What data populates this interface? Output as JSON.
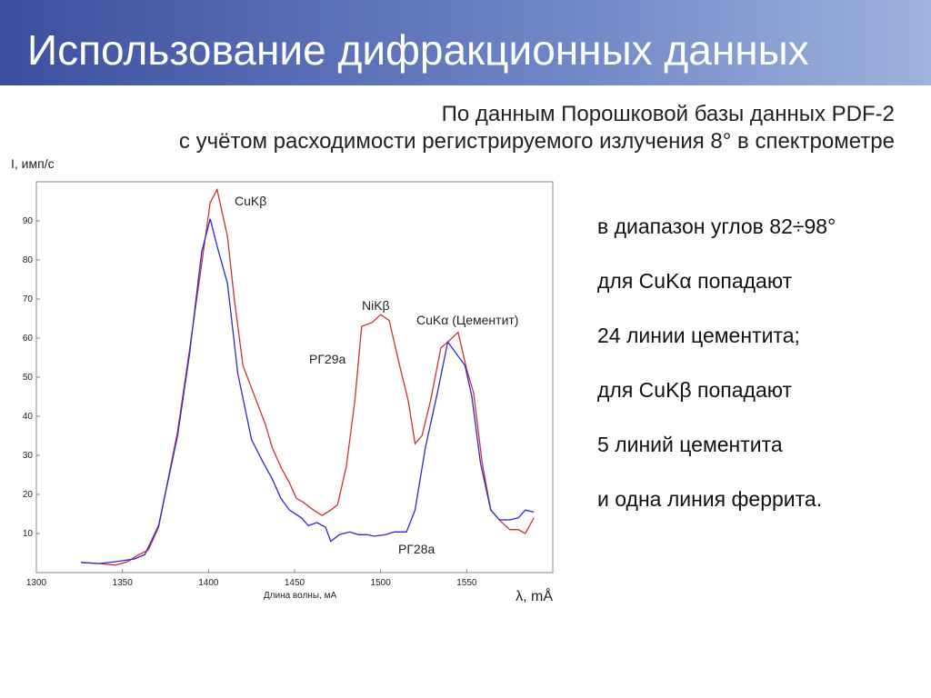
{
  "header": {
    "title": "Использование дифракционных данных"
  },
  "subtitle": [
    "По данным Порошковой базы данных PDF-2",
    "с учётом расходимости регистрируемого излучения 8° в спектрометре"
  ],
  "chart_data": {
    "type": "line",
    "y_label": "I, имп/с",
    "x_label": "Длина волны, мА",
    "x_unit": "λ, mÅ",
    "annotations": [
      "CuKβ",
      "NiKβ",
      "CuKα (Цементит)",
      "РГ29а",
      "РГ28а"
    ],
    "xlim": [
      1300,
      1600
    ],
    "xticks": [
      1300,
      1350,
      1400,
      1450,
      1500,
      1550
    ],
    "ylim": [
      0,
      100
    ],
    "yticks": [
      10,
      20,
      30,
      40,
      50,
      60,
      70,
      80,
      90
    ],
    "grid": false,
    "series": [
      {
        "name": "РГ29а",
        "color": "#d03030",
        "x": [
          1326,
          1337,
          1346,
          1353,
          1358,
          1365,
          1371,
          1382,
          1389,
          1396,
          1401,
          1405,
          1411,
          1415,
          1420,
          1426,
          1433,
          1437,
          1442,
          1447,
          1451,
          1455,
          1461,
          1466,
          1471,
          1475,
          1480,
          1485,
          1489,
          1495,
          1500,
          1505,
          1511,
          1516,
          1520,
          1524,
          1529,
          1535,
          1539,
          1545,
          1550,
          1554,
          1559,
          1564,
          1570,
          1575,
          1580,
          1584,
          1589
        ],
        "values": [
          2.6,
          2.3,
          1.9,
          2.8,
          4.2,
          5.8,
          11.6,
          36,
          57,
          79,
          94.7,
          98,
          86,
          70,
          53,
          46,
          38,
          32,
          27,
          23,
          19,
          18,
          16,
          14.6,
          16,
          17.4,
          27,
          44,
          63,
          64,
          66,
          64.5,
          53,
          44,
          33,
          35,
          44,
          57.5,
          59,
          61.5,
          52,
          46,
          28,
          16,
          13,
          11,
          11,
          10,
          14
        ]
      },
      {
        "name": "РГ28а",
        "color": "#2a2ad0",
        "x": [
          1326,
          1336,
          1346,
          1357,
          1363,
          1371,
          1382,
          1389,
          1396,
          1401,
          1405,
          1411,
          1417,
          1425,
          1432,
          1437,
          1442,
          1447,
          1454,
          1458,
          1463,
          1468,
          1471,
          1476,
          1482,
          1487,
          1492,
          1496,
          1503,
          1508,
          1515,
          1520,
          1526,
          1533,
          1539,
          1544,
          1549,
          1553,
          1558,
          1564,
          1569,
          1575,
          1580,
          1584,
          1589
        ],
        "values": [
          2.6,
          2.3,
          2.8,
          3.5,
          4.6,
          12,
          35,
          56,
          82,
          90.5,
          83.5,
          74,
          51,
          34,
          28,
          24,
          19,
          16,
          14,
          12,
          12.8,
          11.6,
          8,
          9.7,
          10.4,
          9.7,
          9.7,
          9.3,
          9.7,
          10.4,
          10.4,
          16,
          32,
          46,
          59,
          56,
          53,
          45,
          28,
          16,
          13.5,
          13.5,
          14,
          16,
          15.5
        ]
      }
    ]
  },
  "notes": [
    "в диапазон углов 82÷98°",
    "для CuKα попадают",
    "24 линии цементита;",
    "для CuKβ попадают",
    "5 линий цементита",
    "и одна линия феррита."
  ]
}
